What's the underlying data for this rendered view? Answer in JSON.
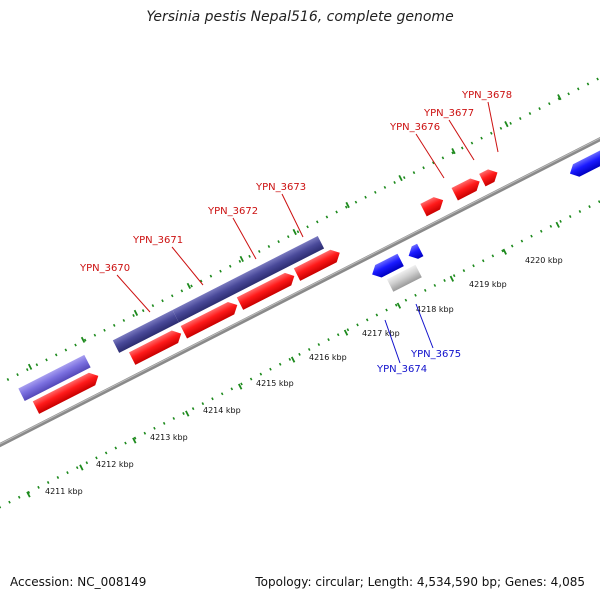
{
  "title": "Yersinia pestis Nepal516, complete genome",
  "footer": {
    "accession": "Accession: NC_008149",
    "summary": "Topology: circular; Length: 4,534,590 bp; Genes: 4,085"
  },
  "colors": {
    "forward_cds": "#ff1a1a",
    "reverse_cds": "#1a1aff",
    "forward_label": "#cc1111",
    "reverse_label": "#1111cc",
    "rna_forward": "#4a4a9a",
    "rna_light": "#7b70e0",
    "pseudo": "#cfcfcf",
    "backbone": "#8a8a8a",
    "tick": "#1d8a1d"
  },
  "axis": {
    "unit": "kbp",
    "tick_labels": [
      "4211 kbp",
      "4212 kbp",
      "4213 kbp",
      "4214 kbp",
      "4215 kbp",
      "4216 kbp",
      "4217 kbp",
      "4218 kbp",
      "4219 kbp",
      "4220 kbp"
    ],
    "tick_positions_kbp": [
      4211,
      4212,
      4213,
      4214,
      4215,
      4216,
      4217,
      4218,
      4219,
      4220
    ]
  },
  "gene_labels": [
    {
      "name": "YPN_3670",
      "strand": "forward"
    },
    {
      "name": "YPN_3671",
      "strand": "forward"
    },
    {
      "name": "YPN_3672",
      "strand": "forward"
    },
    {
      "name": "YPN_3673",
      "strand": "forward"
    },
    {
      "name": "YPN_3676",
      "strand": "forward"
    },
    {
      "name": "YPN_3677",
      "strand": "forward"
    },
    {
      "name": "YPN_3678",
      "strand": "forward"
    },
    {
      "name": "YPN_3674",
      "strand": "reverse"
    },
    {
      "name": "YPN_3675",
      "strand": "reverse"
    }
  ]
}
